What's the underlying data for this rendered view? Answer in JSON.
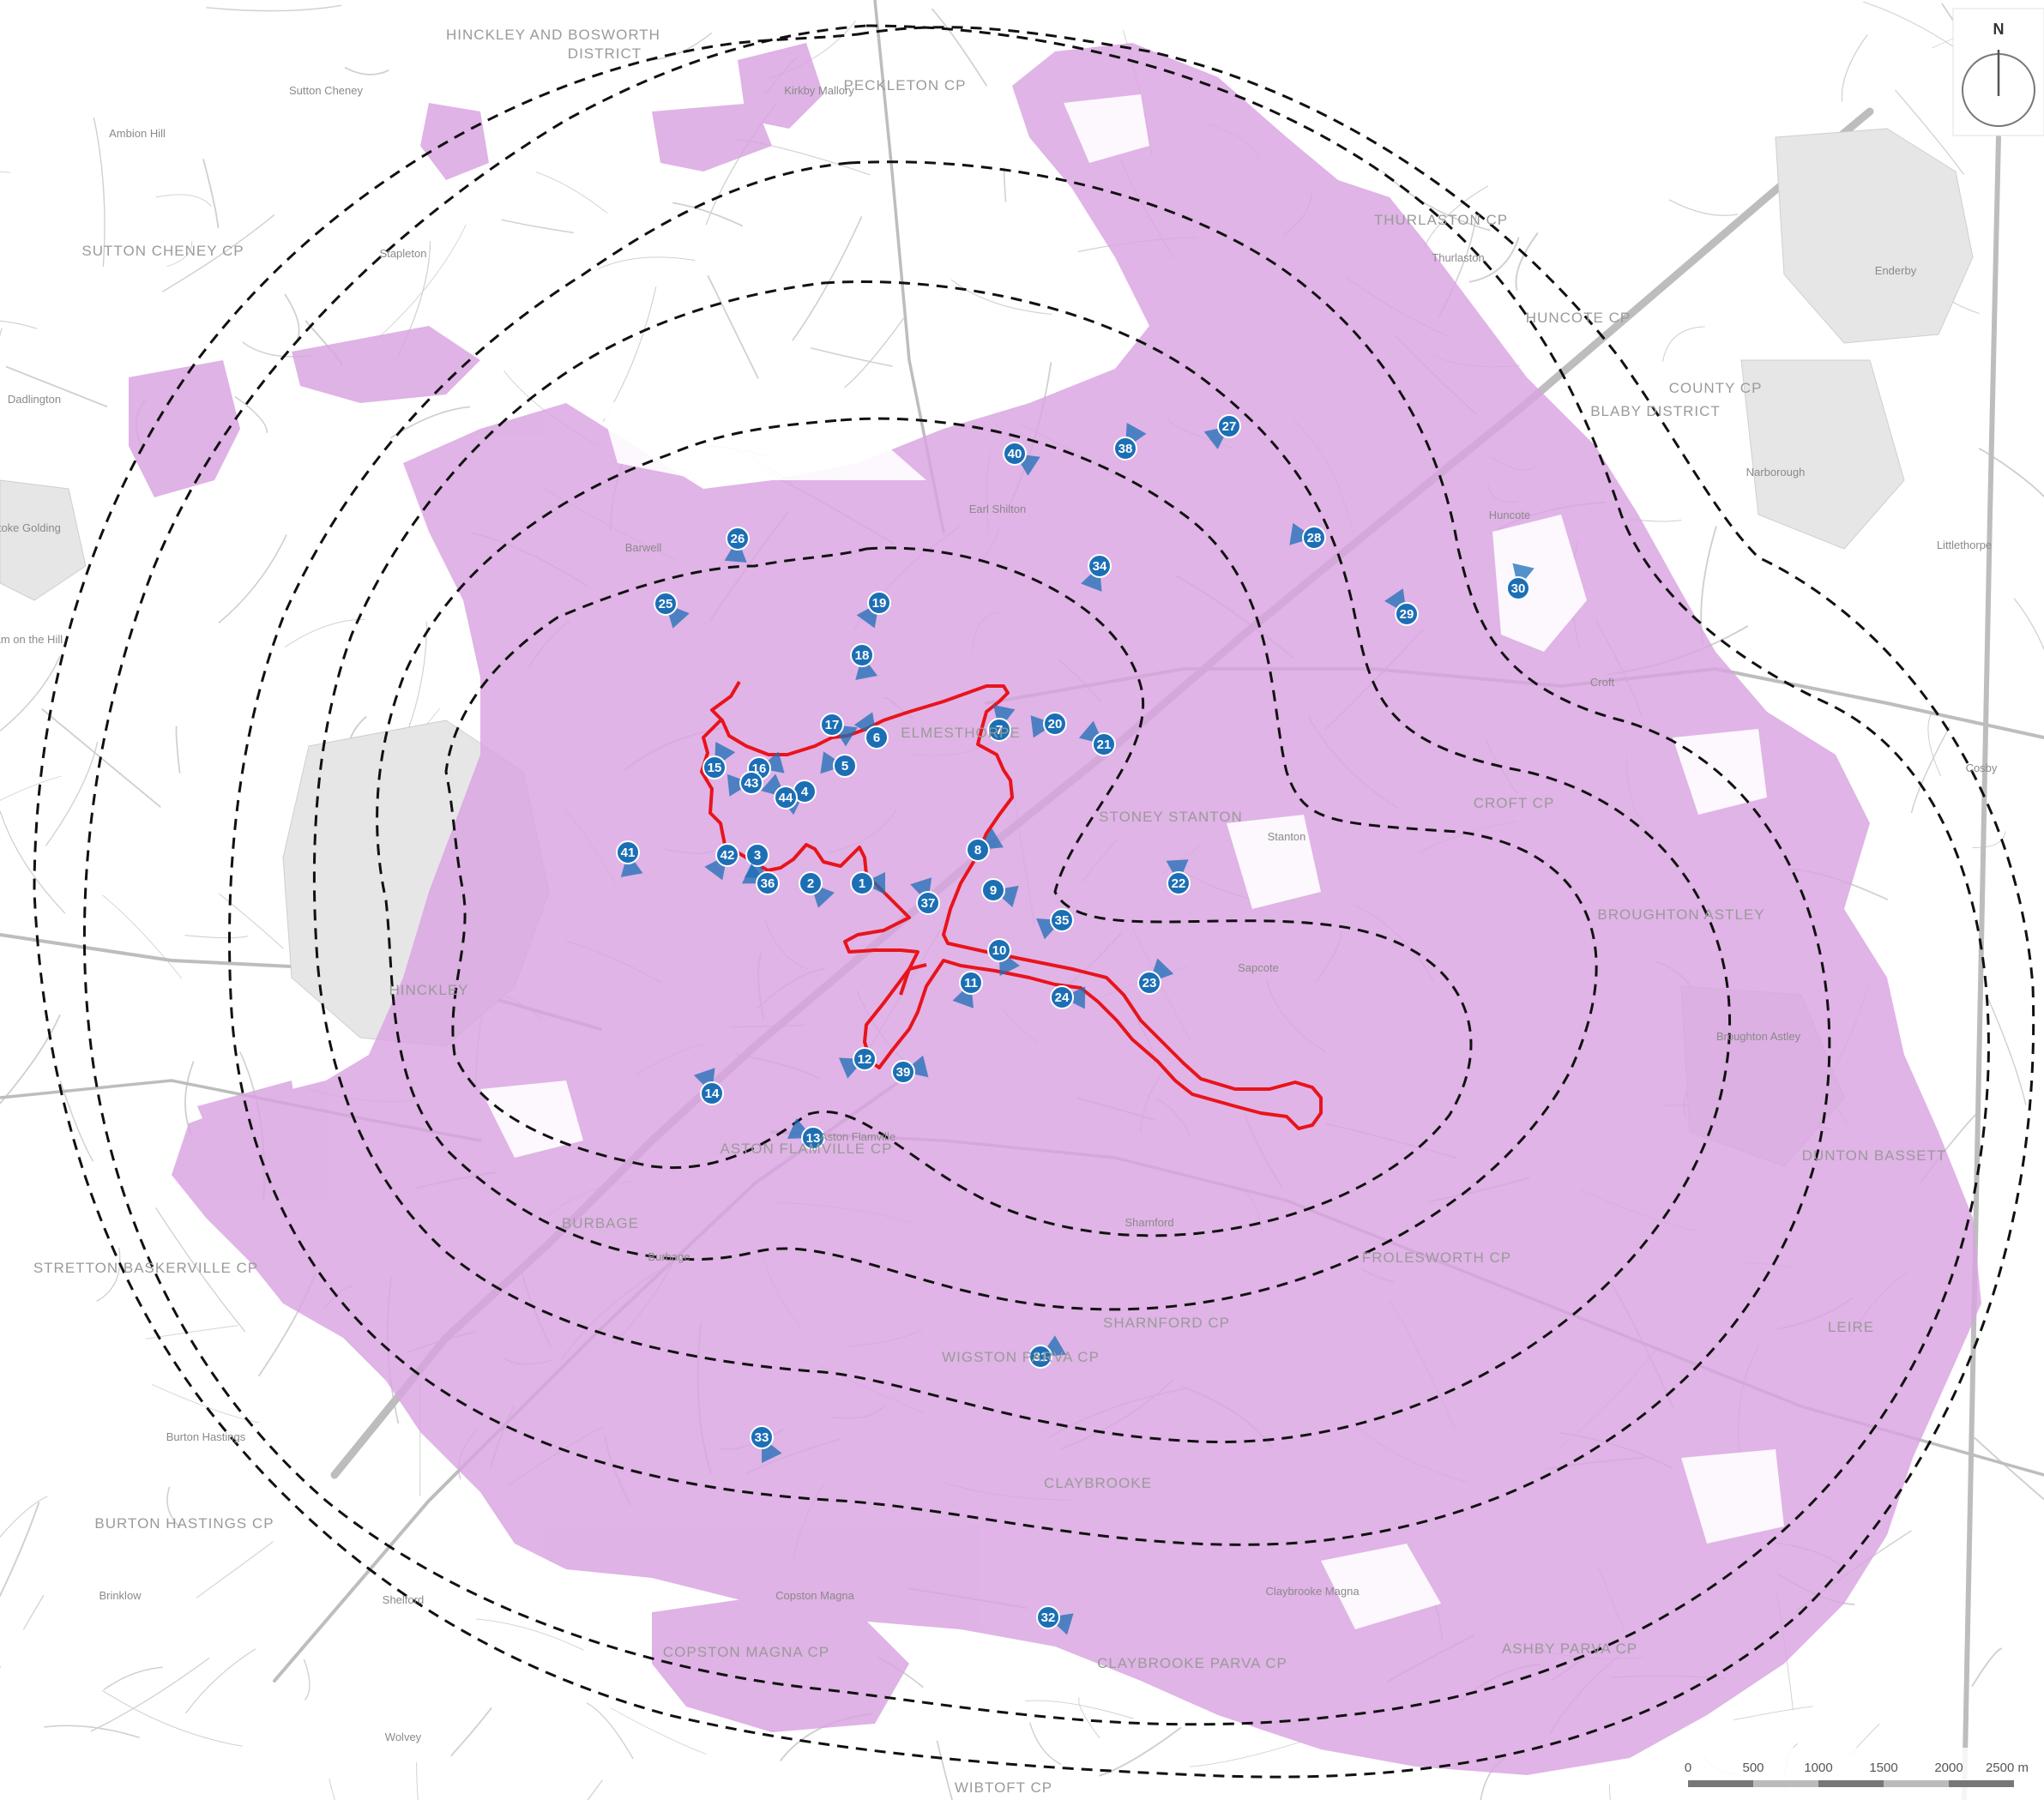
{
  "colors": {
    "zone_fill": "#d9a3e0",
    "site_boundary": "#e8141b",
    "radius_rings": "#111111",
    "viewpoint_marker": "#1c6fb5",
    "basemap_roads": "#c6c6c6",
    "basemap_labels": "#9a9a9a"
  },
  "icons": {
    "north_arrow": "north-arrow-icon",
    "viewpoint": "viewpoint-marker-icon"
  },
  "north": {
    "label": "N"
  },
  "scale_bar": {
    "labels": [
      "0",
      "500",
      "1000",
      "1500",
      "2000",
      "2500 m"
    ]
  },
  "place_labels": [
    "HINCKLEY AND BOSWORTH",
    "DISTRICT",
    "PECKLETON CP",
    "SUTTON CHENEY CP",
    "Sutton Cheney",
    "Kirkby Mallory",
    "Earl Shilton",
    "Barwell",
    "Stapleton",
    "ELMESTHORPE",
    "STONEY STANTON",
    "Stanton",
    "Sapcote",
    "CROFT CP",
    "Croft",
    "HUNCOTE CP",
    "Huncote",
    "THURLASTON CP",
    "Thurlaston",
    "BLABY DISTRICT",
    "COUNTY CP",
    "Narborough",
    "Enderby",
    "Littlethorpe",
    "Cosby",
    "BROUGHTON ASTLEY",
    "Broughton Astley",
    "DUNTON BASSETT",
    "LEIRE",
    "FROLESWORTH CP",
    "SHARNFORD CP",
    "Sharnford",
    "WIGSTON PARVA CP",
    "CLAYBROOKE",
    "Claybrooke Magna",
    "CLAYBROOKE PARVA CP",
    "ASHBY PARVA CP",
    "WIBTOFT CP",
    "COPSTON MAGNA CP",
    "Copston Magna",
    "BURTON HASTINGS CP",
    "Burton Hastings",
    "Brinklow",
    "Wolvey",
    "STRETTON BASKERVILLE CP",
    "BURBAGE",
    "Burbage",
    "HINCKLEY",
    "ASTON FLAMVILLE CP",
    "Aston Flamville",
    "Dadlington",
    "Stoke Golding",
    "Higham on the Hill",
    "Ambion Hill",
    "Shelford"
  ],
  "viewpoints": [
    "1",
    "2",
    "3",
    "4",
    "5",
    "6",
    "7",
    "8",
    "9",
    "10",
    "11",
    "12",
    "13",
    "14",
    "15",
    "16",
    "17",
    "18",
    "19",
    "20",
    "21",
    "22",
    "23",
    "24",
    "25",
    "26",
    "27",
    "28",
    "29",
    "30",
    "31",
    "32",
    "33",
    "34",
    "35",
    "36",
    "37",
    "38",
    "39",
    "40",
    "41",
    "42",
    "43",
    "44"
  ]
}
